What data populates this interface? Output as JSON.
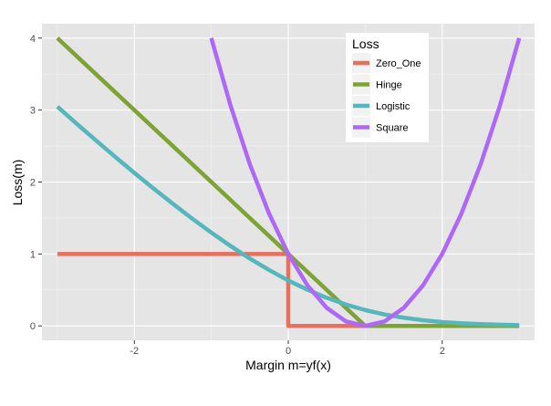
{
  "chart_data": {
    "type": "line",
    "title": "",
    "xlabel": "Margin m=yf(x)",
    "ylabel": "Loss(m)",
    "xlim": [
      -3.2,
      3.2
    ],
    "ylim": [
      -0.2,
      4.2
    ],
    "x_ticks": [
      -2,
      0,
      2
    ],
    "x_tick_labels": [
      "-2",
      "0",
      "2"
    ],
    "y_ticks": [
      0,
      1,
      2,
      3,
      4
    ],
    "y_tick_labels": [
      "0",
      "1",
      "2",
      "3",
      "4"
    ],
    "grid": true,
    "legend": {
      "title": "Loss",
      "position": "top-right",
      "entries": [
        "Zero_One",
        "Hinge",
        "Logistic",
        "Square"
      ]
    },
    "series": [
      {
        "name": "Zero_One",
        "color": "#E76F5F",
        "points": [
          [
            -3,
            1
          ],
          [
            0,
            1
          ],
          [
            0,
            0
          ],
          [
            3,
            0
          ]
        ]
      },
      {
        "name": "Hinge",
        "color": "#7CA434",
        "points": [
          [
            -3,
            4
          ],
          [
            1,
            0
          ],
          [
            3,
            0
          ]
        ]
      },
      {
        "name": "Logistic",
        "color": "#55B6BB",
        "points": [
          [
            -3,
            3.049
          ],
          [
            -2.75,
            2.811
          ],
          [
            -2.5,
            2.579
          ],
          [
            -2.25,
            2.351
          ],
          [
            -2,
            2.127
          ],
          [
            -1.75,
            1.909
          ],
          [
            -1.5,
            1.698
          ],
          [
            -1.25,
            1.493
          ],
          [
            -1,
            1.297
          ],
          [
            -0.75,
            1.111
          ],
          [
            -0.5,
            0.937
          ],
          [
            -0.25,
            0.777
          ],
          [
            0,
            0.631
          ],
          [
            0.25,
            0.503
          ],
          [
            0.5,
            0.391
          ],
          [
            0.75,
            0.297
          ],
          [
            1,
            0.22
          ],
          [
            1.25,
            0.159
          ],
          [
            1.5,
            0.114
          ],
          [
            1.75,
            0.079
          ],
          [
            2,
            0.054
          ],
          [
            2.25,
            0.037
          ],
          [
            2.5,
            0.025
          ],
          [
            2.75,
            0.017
          ],
          [
            3,
            0.011
          ]
        ]
      },
      {
        "name": "Square",
        "color": "#AE68F6",
        "points": [
          [
            -1,
            4
          ],
          [
            -0.75,
            3.0625
          ],
          [
            -0.5,
            2.25
          ],
          [
            -0.25,
            1.5625
          ],
          [
            0,
            1
          ],
          [
            0.25,
            0.5625
          ],
          [
            0.5,
            0.25
          ],
          [
            0.75,
            0.0625
          ],
          [
            1,
            0
          ],
          [
            1.25,
            0.0625
          ],
          [
            1.5,
            0.25
          ],
          [
            1.75,
            0.5625
          ],
          [
            2,
            1
          ],
          [
            2.25,
            1.5625
          ],
          [
            2.5,
            2.25
          ],
          [
            2.75,
            3.0625
          ],
          [
            3,
            4
          ]
        ]
      }
    ]
  },
  "colors": {
    "panel_background": "#E5E5E5",
    "grid_major": "#FFFFFF",
    "grid_minor": "#F2F2F2"
  }
}
